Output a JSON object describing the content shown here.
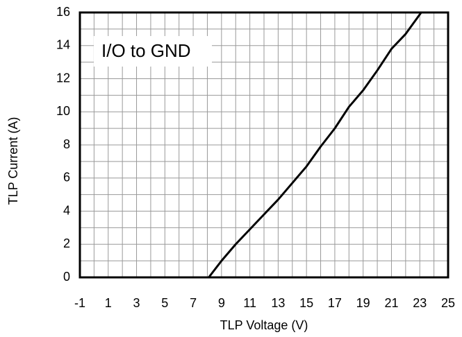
{
  "chart_data": {
    "type": "line",
    "annotation": "I/O to GND",
    "x_label": "TLP Voltage (V)",
    "y_label": "TLP Current (A)",
    "x": [
      0.8,
      8.1,
      9,
      10,
      11,
      12,
      13,
      14,
      15,
      16,
      17,
      18,
      19,
      20,
      21,
      22,
      23.1
    ],
    "series": [
      {
        "name": "I/O to GND",
        "color": "#000000",
        "values": [
          0,
          0,
          1,
          2,
          2.9,
          3.8,
          4.7,
          5.7,
          6.7,
          7.9,
          9,
          10.3,
          11.3,
          12.5,
          13.8,
          14.7,
          16
        ]
      }
    ],
    "xlim": [
      -1,
      25
    ],
    "xticks": [
      -1,
      1,
      3,
      5,
      7,
      9,
      11,
      13,
      15,
      17,
      19,
      21,
      23,
      25
    ],
    "xminorticks": [
      0,
      2,
      4,
      6,
      8,
      10,
      12,
      14,
      16,
      18,
      20,
      22,
      24
    ],
    "ylim": [
      0,
      16
    ],
    "yticks": [
      0,
      2,
      4,
      6,
      8,
      10,
      12,
      14,
      16
    ],
    "yminorticks": [
      1,
      3,
      5,
      7,
      9,
      11,
      13,
      15
    ],
    "grid": true
  }
}
